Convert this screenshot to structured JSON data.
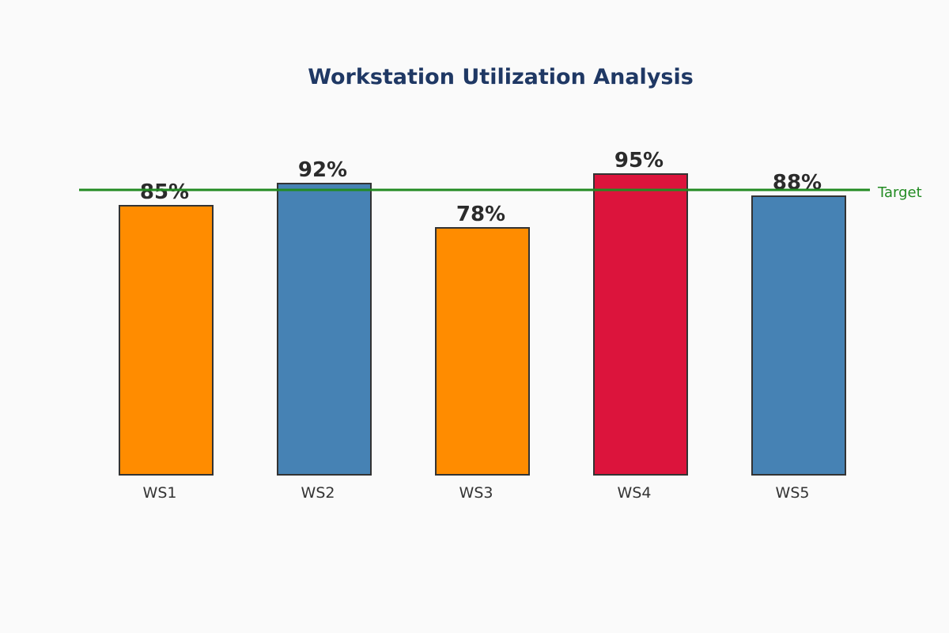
{
  "chart_data": {
    "type": "bar",
    "title": "Workstation Utilization Analysis",
    "xlabel": "",
    "ylabel": "",
    "categories": [
      "WS1",
      "WS2",
      "WS3",
      "WS4",
      "WS5"
    ],
    "values": [
      85,
      92,
      78,
      95,
      88
    ],
    "value_labels": [
      "85%",
      "92%",
      "78%",
      "95%",
      "88%"
    ],
    "bar_colors": [
      "#ff8c00",
      "#4682b4",
      "#ff8c00",
      "#dc143c",
      "#4682b4"
    ],
    "ylim": [
      0,
      100
    ],
    "grid": false,
    "reference_line": {
      "label": "Target",
      "value": 90,
      "color": "#228b22"
    }
  }
}
